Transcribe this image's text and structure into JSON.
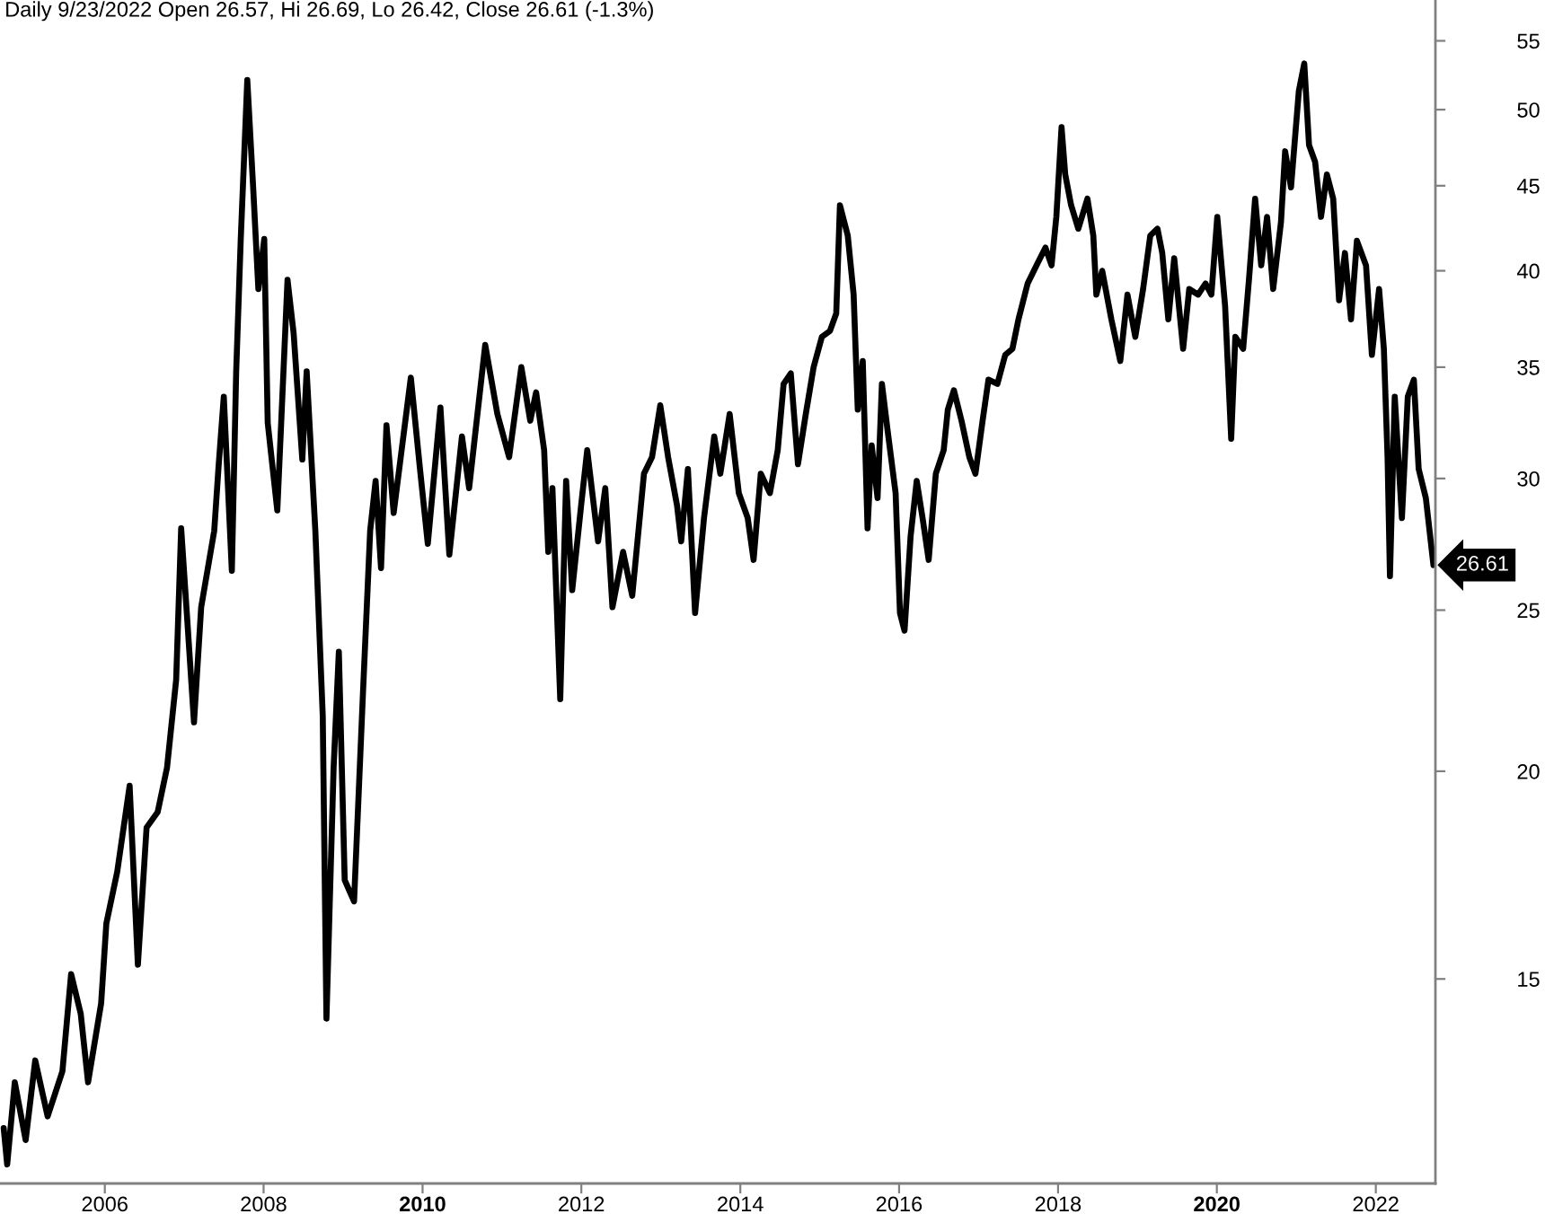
{
  "chart_data": {
    "type": "line",
    "title": "Daily 9/23/2022 Open 26.57, Hi 26.69, Lo 26.42, Close 26.61 (-1.3%)",
    "x": [
      "2004-09-23",
      "2004-10-09",
      "2004-11-13",
      "2005-01-02",
      "2005-02-15",
      "2005-04-13",
      "2005-06-20",
      "2005-07-30",
      "2005-09-12",
      "2005-10-16",
      "2005-12-15",
      "2006-01-08",
      "2006-02-27",
      "2006-04-25",
      "2006-06-02",
      "2006-07-12",
      "2006-09-01",
      "2006-10-14",
      "2006-11-25",
      "2006-12-18",
      "2007-01-13",
      "2007-02-15",
      "2007-03-20",
      "2007-05-19",
      "2007-06-08",
      "2007-07-02",
      "2007-08-08",
      "2007-08-28",
      "2007-09-18",
      "2007-10-18",
      "2007-11-14",
      "2007-12-08",
      "2008-01-04",
      "2008-01-20",
      "2008-03-04",
      "2008-04-20",
      "2008-05-18",
      "2008-06-27",
      "2008-07-17",
      "2008-08-26",
      "2008-09-29",
      "2008-10-16",
      "2008-11-18",
      "2008-12-12",
      "2009-01-08",
      "2009-02-20",
      "2009-04-02",
      "2009-05-05",
      "2009-05-30",
      "2009-06-24",
      "2009-07-19",
      "2009-08-21",
      "2009-11-08",
      "2009-12-19",
      "2010-01-25",
      "2010-03-24",
      "2010-05-04",
      "2010-07-01",
      "2010-08-03",
      "2010-10-16",
      "2010-12-11",
      "2011-02-03",
      "2011-03-31",
      "2011-05-11",
      "2011-06-07",
      "2011-07-14",
      "2011-08-02",
      "2011-08-21",
      "2011-09-26",
      "2011-10-23",
      "2011-11-20",
      "2011-12-31",
      "2012-01-28",
      "2012-03-18",
      "2012-04-20",
      "2012-05-23",
      "2012-07-11",
      "2012-08-22",
      "2012-10-15",
      "2012-11-21",
      "2012-12-29",
      "2013-02-03",
      "2013-03-16",
      "2013-04-04",
      "2013-05-05",
      "2013-06-07",
      "2013-07-18",
      "2013-09-03",
      "2013-10-01",
      "2013-11-13",
      "2013-12-25",
      "2014-02-04",
      "2014-03-03",
      "2014-04-05",
      "2014-05-17",
      "2014-06-22",
      "2014-07-19",
      "2014-08-21",
      "2014-09-23",
      "2014-10-29",
      "2014-12-04",
      "2015-01-11",
      "2015-02-17",
      "2015-03-18",
      "2015-04-04",
      "2015-05-10",
      "2015-06-06",
      "2015-06-25",
      "2015-07-18",
      "2015-08-09",
      "2015-08-28",
      "2015-09-24",
      "2015-10-14",
      "2015-11-10",
      "2015-12-16",
      "2016-01-05",
      "2016-01-26",
      "2016-02-23",
      "2016-03-22",
      "2016-04-18",
      "2016-05-16",
      "2016-06-18",
      "2016-07-24",
      "2016-08-12",
      "2016-09-09",
      "2016-10-14",
      "2016-11-19",
      "2016-12-17",
      "2017-01-19",
      "2017-02-15",
      "2017-03-28",
      "2017-05-03",
      "2017-06-05",
      "2017-07-03",
      "2017-08-14",
      "2017-09-24",
      "2017-11-04",
      "2017-12-02",
      "2017-12-24",
      "2018-01-17",
      "2018-02-03",
      "2018-03-02",
      "2018-04-04",
      "2018-05-16",
      "2018-06-12",
      "2018-06-26",
      "2018-07-23",
      "2018-09-03",
      "2018-10-14",
      "2018-11-16",
      "2018-12-22",
      "2019-01-27",
      "2019-03-01",
      "2019-04-03",
      "2019-04-25",
      "2019-05-23",
      "2019-06-19",
      "2019-07-30",
      "2019-08-27",
      "2019-10-07",
      "2019-11-10",
      "2019-12-07",
      "2020-01-03",
      "2020-02-08",
      "2020-03-07",
      "2020-03-26",
      "2020-05-01",
      "2020-05-29",
      "2020-06-25",
      "2020-07-23",
      "2020-08-19",
      "2020-09-16",
      "2020-10-22",
      "2020-11-10",
      "2020-12-07",
      "2021-01-12",
      "2021-02-06",
      "2021-02-28",
      "2021-03-28",
      "2021-04-24",
      "2021-05-21",
      "2021-06-19",
      "2021-07-16",
      "2021-08-12",
      "2021-09-09",
      "2021-10-06",
      "2021-11-17",
      "2021-12-14",
      "2022-01-16",
      "2022-02-07",
      "2022-02-24",
      "2022-03-07",
      "2022-03-29",
      "2022-05-01",
      "2022-05-28",
      "2022-06-25",
      "2022-07-17",
      "2022-08-19",
      "2022-09-23"
    ],
    "series": [
      {
        "color": "#000000",
        "values": [
          12.2,
          11.6,
          13.0,
          12.0,
          13.4,
          12.4,
          13.2,
          15.1,
          14.3,
          13.0,
          14.5,
          16.2,
          17.4,
          19.6,
          15.3,
          18.5,
          18.9,
          20.1,
          22.7,
          28.0,
          24.9,
          21.4,
          25.1,
          27.9,
          30.5,
          33.6,
          26.4,
          34.8,
          41.8,
          52.1,
          44.9,
          39.0,
          41.8,
          32.4,
          28.7,
          39.5,
          36.7,
          30.8,
          34.8,
          27.9,
          21.6,
          14.2,
          20.1,
          23.6,
          17.2,
          16.7,
          22.3,
          27.9,
          29.9,
          26.5,
          32.3,
          28.6,
          34.5,
          30.5,
          27.4,
          33.1,
          27.0,
          31.8,
          29.6,
          36.1,
          32.8,
          30.9,
          35.0,
          32.5,
          33.8,
          31.2,
          27.1,
          29.6,
          22.1,
          29.9,
          25.7,
          28.9,
          31.2,
          27.5,
          29.6,
          25.1,
          27.1,
          25.5,
          30.2,
          30.9,
          33.2,
          30.9,
          28.9,
          27.5,
          30.4,
          24.9,
          28.4,
          31.8,
          30.2,
          32.8,
          29.4,
          28.4,
          26.8,
          30.2,
          29.4,
          31.2,
          34.2,
          34.7,
          30.6,
          32.8,
          35.0,
          36.5,
          36.8,
          37.7,
          43.8,
          42.0,
          38.7,
          33.0,
          35.3,
          28.0,
          31.4,
          29.2,
          34.2,
          32.0,
          29.4,
          24.9,
          24.3,
          27.7,
          29.9,
          28.4,
          26.8,
          30.2,
          31.2,
          33.0,
          33.9,
          32.5,
          30.9,
          30.2,
          32.5,
          34.4,
          34.2,
          35.6,
          35.9,
          37.4,
          39.3,
          40.3,
          41.3,
          40.3,
          43.1,
          48.8,
          45.7,
          43.8,
          42.4,
          44.2,
          42.0,
          38.7,
          40.0,
          37.4,
          35.3,
          38.7,
          36.5,
          39.0,
          42.0,
          42.4,
          41.0,
          37.4,
          40.7,
          35.9,
          39.0,
          38.7,
          39.3,
          38.7,
          43.1,
          38.1,
          31.7,
          36.5,
          35.9,
          39.7,
          44.2,
          40.3,
          43.1,
          39.0,
          42.8,
          47.2,
          44.9,
          51.3,
          53.3,
          47.6,
          46.5,
          43.1,
          45.7,
          44.2,
          38.4,
          41.0,
          37.4,
          41.7,
          40.3,
          35.6,
          39.0,
          35.9,
          30.9,
          26.2,
          33.6,
          28.4,
          33.6,
          34.4,
          30.4,
          29.2,
          26.61
        ]
      }
    ],
    "xlim": [
      "2004-09-06",
      "2022-10-02"
    ],
    "xticks": [
      "2006",
      "2008",
      "2010",
      "2012",
      "2014",
      "2016",
      "2018",
      "2020",
      "2022"
    ],
    "log": "y",
    "ylim": [
      11.3,
      58.2
    ],
    "yticks": [
      15,
      20,
      25,
      30,
      35,
      40,
      45,
      50,
      55
    ],
    "grid": false,
    "marker": "none",
    "line_style": "solid",
    "annotations": [
      {
        "text": "26.61",
        "x": "2022-09-23",
        "y": 26.61
      }
    ]
  }
}
